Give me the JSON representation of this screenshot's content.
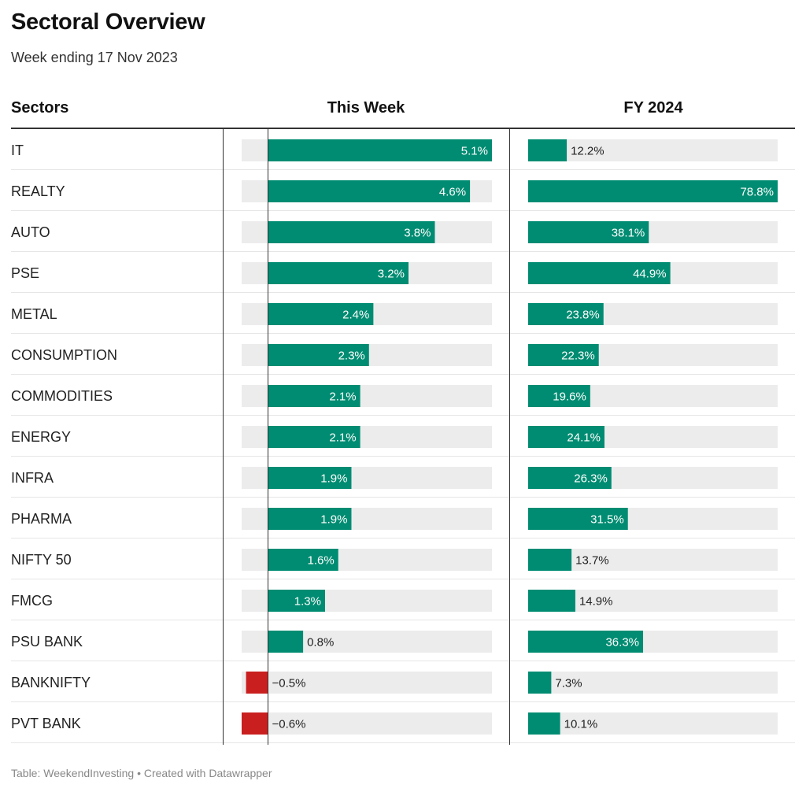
{
  "title": "Sectoral Overview",
  "subtitle": "Week ending 17 Nov 2023",
  "headers": {
    "sectors": "Sectors",
    "this_week": "This Week",
    "fy": "FY 2024"
  },
  "footer": "Table: WeekendInvesting • Created with Datawrapper",
  "colors": {
    "positive": "#008c72",
    "negative": "#c91f1f",
    "track": "#ececec"
  },
  "chart_data": {
    "type": "table",
    "columns": [
      "Sectors",
      "This Week",
      "FY 2024"
    ],
    "this_week_range": [
      -0.6,
      5.1
    ],
    "fy_range": [
      0,
      78.8
    ],
    "rows": [
      {
        "sector": "IT",
        "week": 5.1,
        "week_label": "5.1%",
        "fy": 12.2,
        "fy_label": "12.2%"
      },
      {
        "sector": "REALTY",
        "week": 4.6,
        "week_label": "4.6%",
        "fy": 78.8,
        "fy_label": "78.8%"
      },
      {
        "sector": "AUTO",
        "week": 3.8,
        "week_label": "3.8%",
        "fy": 38.1,
        "fy_label": "38.1%"
      },
      {
        "sector": "PSE",
        "week": 3.2,
        "week_label": "3.2%",
        "fy": 44.9,
        "fy_label": "44.9%"
      },
      {
        "sector": "METAL",
        "week": 2.4,
        "week_label": "2.4%",
        "fy": 23.8,
        "fy_label": "23.8%"
      },
      {
        "sector": "CONSUMPTION",
        "week": 2.3,
        "week_label": "2.3%",
        "fy": 22.3,
        "fy_label": "22.3%"
      },
      {
        "sector": "COMMODITIES",
        "week": 2.1,
        "week_label": "2.1%",
        "fy": 19.6,
        "fy_label": "19.6%"
      },
      {
        "sector": "ENERGY",
        "week": 2.1,
        "week_label": "2.1%",
        "fy": 24.1,
        "fy_label": "24.1%"
      },
      {
        "sector": "INFRA",
        "week": 1.9,
        "week_label": "1.9%",
        "fy": 26.3,
        "fy_label": "26.3%"
      },
      {
        "sector": "PHARMA",
        "week": 1.9,
        "week_label": "1.9%",
        "fy": 31.5,
        "fy_label": "31.5%"
      },
      {
        "sector": "NIFTY 50",
        "week": 1.6,
        "week_label": "1.6%",
        "fy": 13.7,
        "fy_label": "13.7%"
      },
      {
        "sector": "FMCG",
        "week": 1.3,
        "week_label": "1.3%",
        "fy": 14.9,
        "fy_label": "14.9%"
      },
      {
        "sector": "PSU BANK",
        "week": 0.8,
        "week_label": "0.8%",
        "fy": 36.3,
        "fy_label": "36.3%"
      },
      {
        "sector": "BANKNIFTY",
        "week": -0.5,
        "week_label": "−0.5%",
        "fy": 7.3,
        "fy_label": "7.3%"
      },
      {
        "sector": "PVT BANK",
        "week": -0.6,
        "week_label": "−0.6%",
        "fy": 10.1,
        "fy_label": "10.1%"
      }
    ]
  }
}
